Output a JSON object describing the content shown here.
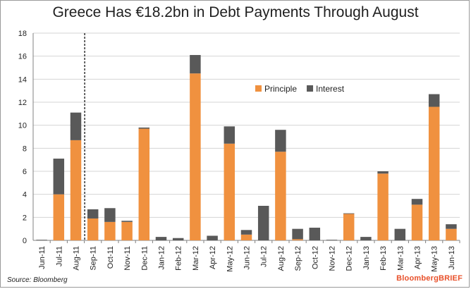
{
  "chart_data": {
    "type": "bar",
    "stacked": true,
    "title": "Greece Has €18.2bn in Debt Payments Through August",
    "xlabel": "",
    "ylabel": "",
    "ylim": [
      0,
      18
    ],
    "yticks": [
      0,
      2,
      4,
      6,
      8,
      10,
      12,
      14,
      16,
      18
    ],
    "grid": true,
    "legend_position": "center-right",
    "categories": [
      "Jun-11",
      "Jul-11",
      "Aug-11",
      "Sep-11",
      "Oct-11",
      "Nov-11",
      "Dec-11",
      "Jan-12",
      "Feb-12",
      "Mar-12",
      "Apr-12",
      "May-12",
      "Jun-12",
      "Jul-12",
      "Aug-12",
      "Sep-12",
      "Oct-12",
      "Nov-12",
      "Dec-12",
      "Jan-13",
      "Feb-13",
      "Mar-13",
      "Apr-13",
      "May-13",
      "Jun-13"
    ],
    "series": [
      {
        "name": "Principle",
        "color": "#f0913f",
        "values": [
          0,
          4.0,
          8.7,
          1.9,
          1.6,
          1.6,
          9.7,
          0,
          0,
          14.5,
          0,
          8.4,
          0.5,
          0,
          7.7,
          0.1,
          0,
          0,
          2.3,
          0,
          5.8,
          0,
          3.1,
          11.6,
          1.0
        ]
      },
      {
        "name": "Interest",
        "color": "#595959",
        "values": [
          0.05,
          3.1,
          2.4,
          0.8,
          1.2,
          0.1,
          0.1,
          0.3,
          0.2,
          1.6,
          0.4,
          1.5,
          0.4,
          3.0,
          1.9,
          0.9,
          1.1,
          0.05,
          0.05,
          0.3,
          0.2,
          1.0,
          0.5,
          1.1,
          0.4
        ]
      }
    ],
    "reference_line_after": "Aug-11"
  },
  "source_note": "Source: Bloomberg",
  "brand_logo": "BloombergBRIEF"
}
